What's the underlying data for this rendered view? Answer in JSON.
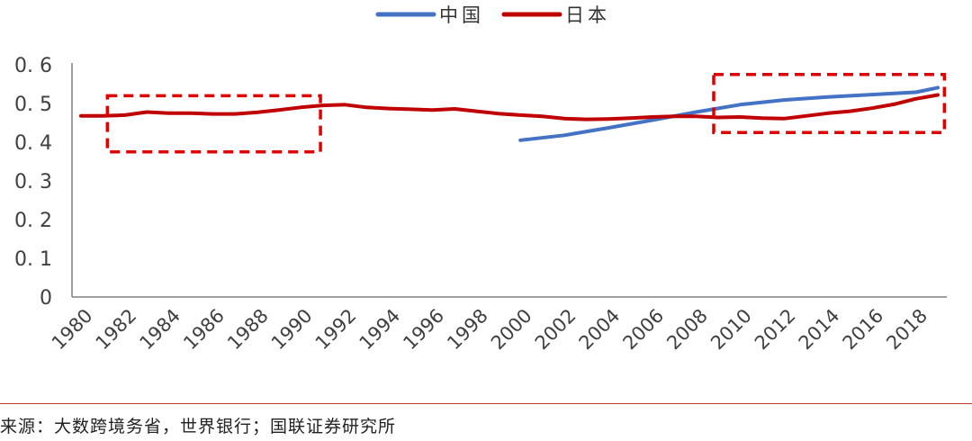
{
  "chart_data": {
    "type": "line",
    "title": "",
    "xlabel": "",
    "ylabel": "",
    "x_ticks": [
      "1980",
      "1982",
      "1984",
      "1986",
      "1988",
      "1990",
      "1992",
      "1994",
      "1996",
      "1998",
      "2000",
      "2002",
      "2004",
      "2006",
      "2008",
      "2010",
      "2012",
      "2014",
      "2016",
      "2018"
    ],
    "y_ticks": [
      "0",
      "0. 1",
      "0. 2",
      "0. 3",
      "0. 4",
      "0. 5",
      "0. 6"
    ],
    "xlim": [
      1980,
      2019
    ],
    "ylim": [
      0,
      0.6
    ],
    "grid": false,
    "legend_position": "top-center",
    "series": [
      {
        "name": "中国",
        "color": "#4472c4",
        "x": [
          2000,
          2002,
          2004,
          2006,
          2008,
          2010,
          2012,
          2014,
          2016,
          2018,
          2019
        ],
        "y": [
          0.405,
          0.418,
          0.437,
          0.457,
          0.478,
          0.497,
          0.509,
          0.517,
          0.523,
          0.529,
          0.541
        ]
      },
      {
        "name": "日本",
        "color": "#c00000",
        "x": [
          1980,
          1981,
          1982,
          1983,
          1984,
          1985,
          1986,
          1987,
          1988,
          1989,
          1990,
          1991,
          1992,
          1993,
          1994,
          1995,
          1996,
          1997,
          1998,
          1999,
          2000,
          2001,
          2002,
          2003,
          2004,
          2005,
          2006,
          2007,
          2008,
          2009,
          2010,
          2011,
          2012,
          2013,
          2014,
          2015,
          2016,
          2017,
          2018,
          2019
        ],
        "y": [
          0.468,
          0.468,
          0.47,
          0.478,
          0.475,
          0.475,
          0.473,
          0.473,
          0.477,
          0.483,
          0.49,
          0.495,
          0.497,
          0.49,
          0.487,
          0.485,
          0.483,
          0.486,
          0.48,
          0.474,
          0.47,
          0.467,
          0.461,
          0.459,
          0.46,
          0.462,
          0.465,
          0.467,
          0.467,
          0.464,
          0.465,
          0.462,
          0.461,
          0.468,
          0.475,
          0.48,
          0.488,
          0.498,
          0.512,
          0.522
        ]
      }
    ],
    "annotations": [
      {
        "shape": "dashed-rectangle",
        "color": "#e00000",
        "x_range": [
          1981.2,
          1990.9
        ],
        "y_range": [
          0.375,
          0.52
        ]
      },
      {
        "shape": "dashed-rectangle",
        "color": "#e00000",
        "x_range": [
          2008.8,
          2019.3
        ],
        "y_range": [
          0.425,
          0.575
        ]
      }
    ]
  },
  "source_text": "来源：大数跨境务省，世界银行；国联证券研究所"
}
